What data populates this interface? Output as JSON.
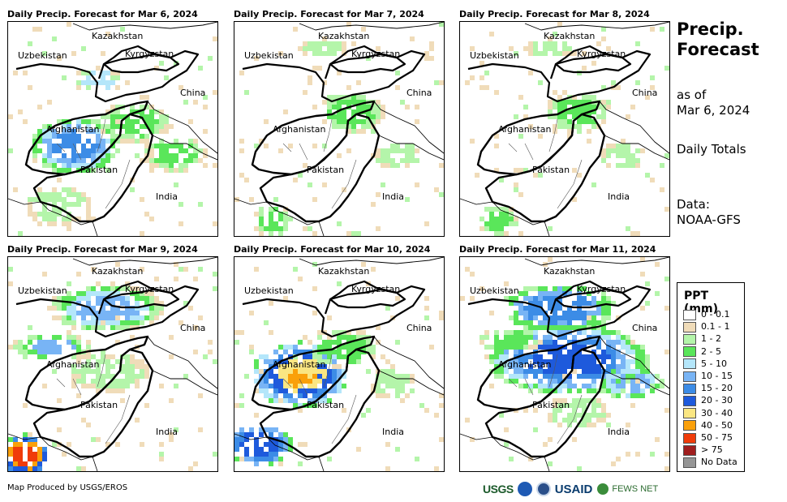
{
  "panels": [
    {
      "title": "Daily Precip. Forecast for Mar 6, 2024",
      "intensity": "moderate-west"
    },
    {
      "title": "Daily Precip. Forecast for Mar 7, 2024",
      "intensity": "light"
    },
    {
      "title": "Daily Precip. Forecast for Mar 8, 2024",
      "intensity": "light"
    },
    {
      "title": "Daily Precip. Forecast for Mar 9, 2024",
      "intensity": "moderate-north"
    },
    {
      "title": "Daily Precip. Forecast for Mar 10, 2024",
      "intensity": "heavy-central"
    },
    {
      "title": "Daily Precip. Forecast for Mar 11, 2024",
      "intensity": "heavy-east"
    }
  ],
  "place_labels": {
    "kazakhstan": "Kazakhstan",
    "uzbekistan": "Uzbekistan",
    "kyrgyzstan": "Kyrgyzstan",
    "china": "China",
    "afghanistan": "Afghanistan",
    "pakistan": "Pakistan",
    "india": "India"
  },
  "sidebar": {
    "title_line1": "Precip.",
    "title_line2": "Forecast",
    "asof_line1": "as of",
    "asof_line2": "Mar 6, 2024",
    "totals": "Daily Totals",
    "data_line1": "Data:",
    "data_line2": "NOAA-GFS"
  },
  "legend": {
    "title": "PPT (mm)",
    "items": [
      {
        "label": "0 - 0.1",
        "color": "#ffffff"
      },
      {
        "label": "0.1 - 1",
        "color": "#f0dcb9"
      },
      {
        "label": "1 - 2",
        "color": "#b4f5aa"
      },
      {
        "label": "2 - 5",
        "color": "#5ae65a"
      },
      {
        "label": "5 - 10",
        "color": "#b4e6fa"
      },
      {
        "label": "10 - 15",
        "color": "#78b4f5"
      },
      {
        "label": "15 - 20",
        "color": "#3c8ce6"
      },
      {
        "label": "20 - 30",
        "color": "#1e5adc"
      },
      {
        "label": "30 - 40",
        "color": "#fae682"
      },
      {
        "label": "40 - 50",
        "color": "#faa00a"
      },
      {
        "label": "50 - 75",
        "color": "#f03c0a"
      },
      {
        "label": "> 75",
        "color": "#a01e1e"
      },
      {
        "label": "No Data",
        "color": "#969696"
      }
    ]
  },
  "credit": "Map Produced by USGS/EROS",
  "logos": {
    "usgs": "USGS",
    "usaid": "USAID",
    "fews": "FEWS NET"
  }
}
